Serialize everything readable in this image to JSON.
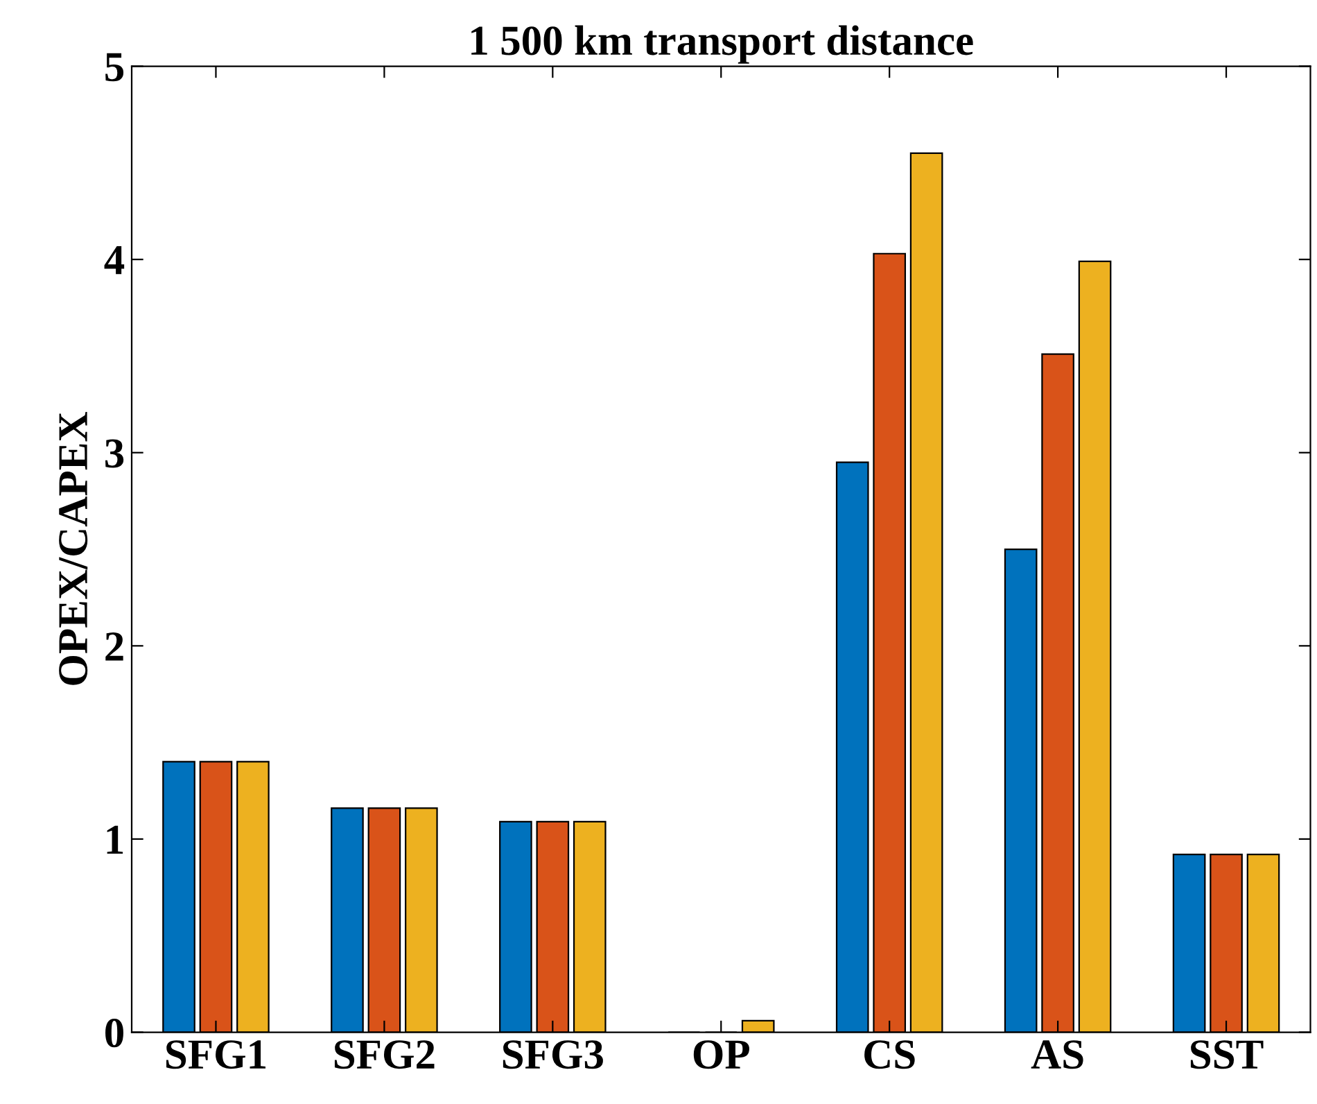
{
  "chart_data": {
    "type": "bar",
    "title": "1 500 km transport distance",
    "ylabel": "OPEX/CAPEX",
    "categories": [
      "SFG1",
      "SFG2",
      "SFG3",
      "OP",
      "CS",
      "AS",
      "SST"
    ],
    "series": [
      {
        "color": "#0072bd",
        "values": [
          1.4,
          1.16,
          1.09,
          0,
          2.95,
          2.5,
          0.92
        ]
      },
      {
        "color": "#d95319",
        "values": [
          1.4,
          1.16,
          1.09,
          0,
          4.03,
          3.51,
          0.92
        ]
      },
      {
        "color": "#edb120",
        "values": [
          1.4,
          1.16,
          1.09,
          0.06,
          4.55,
          3.99,
          0.92
        ]
      }
    ],
    "ylim": [
      0,
      5
    ],
    "yticks": [
      0,
      1,
      2,
      3,
      4,
      5
    ],
    "grid": false
  }
}
